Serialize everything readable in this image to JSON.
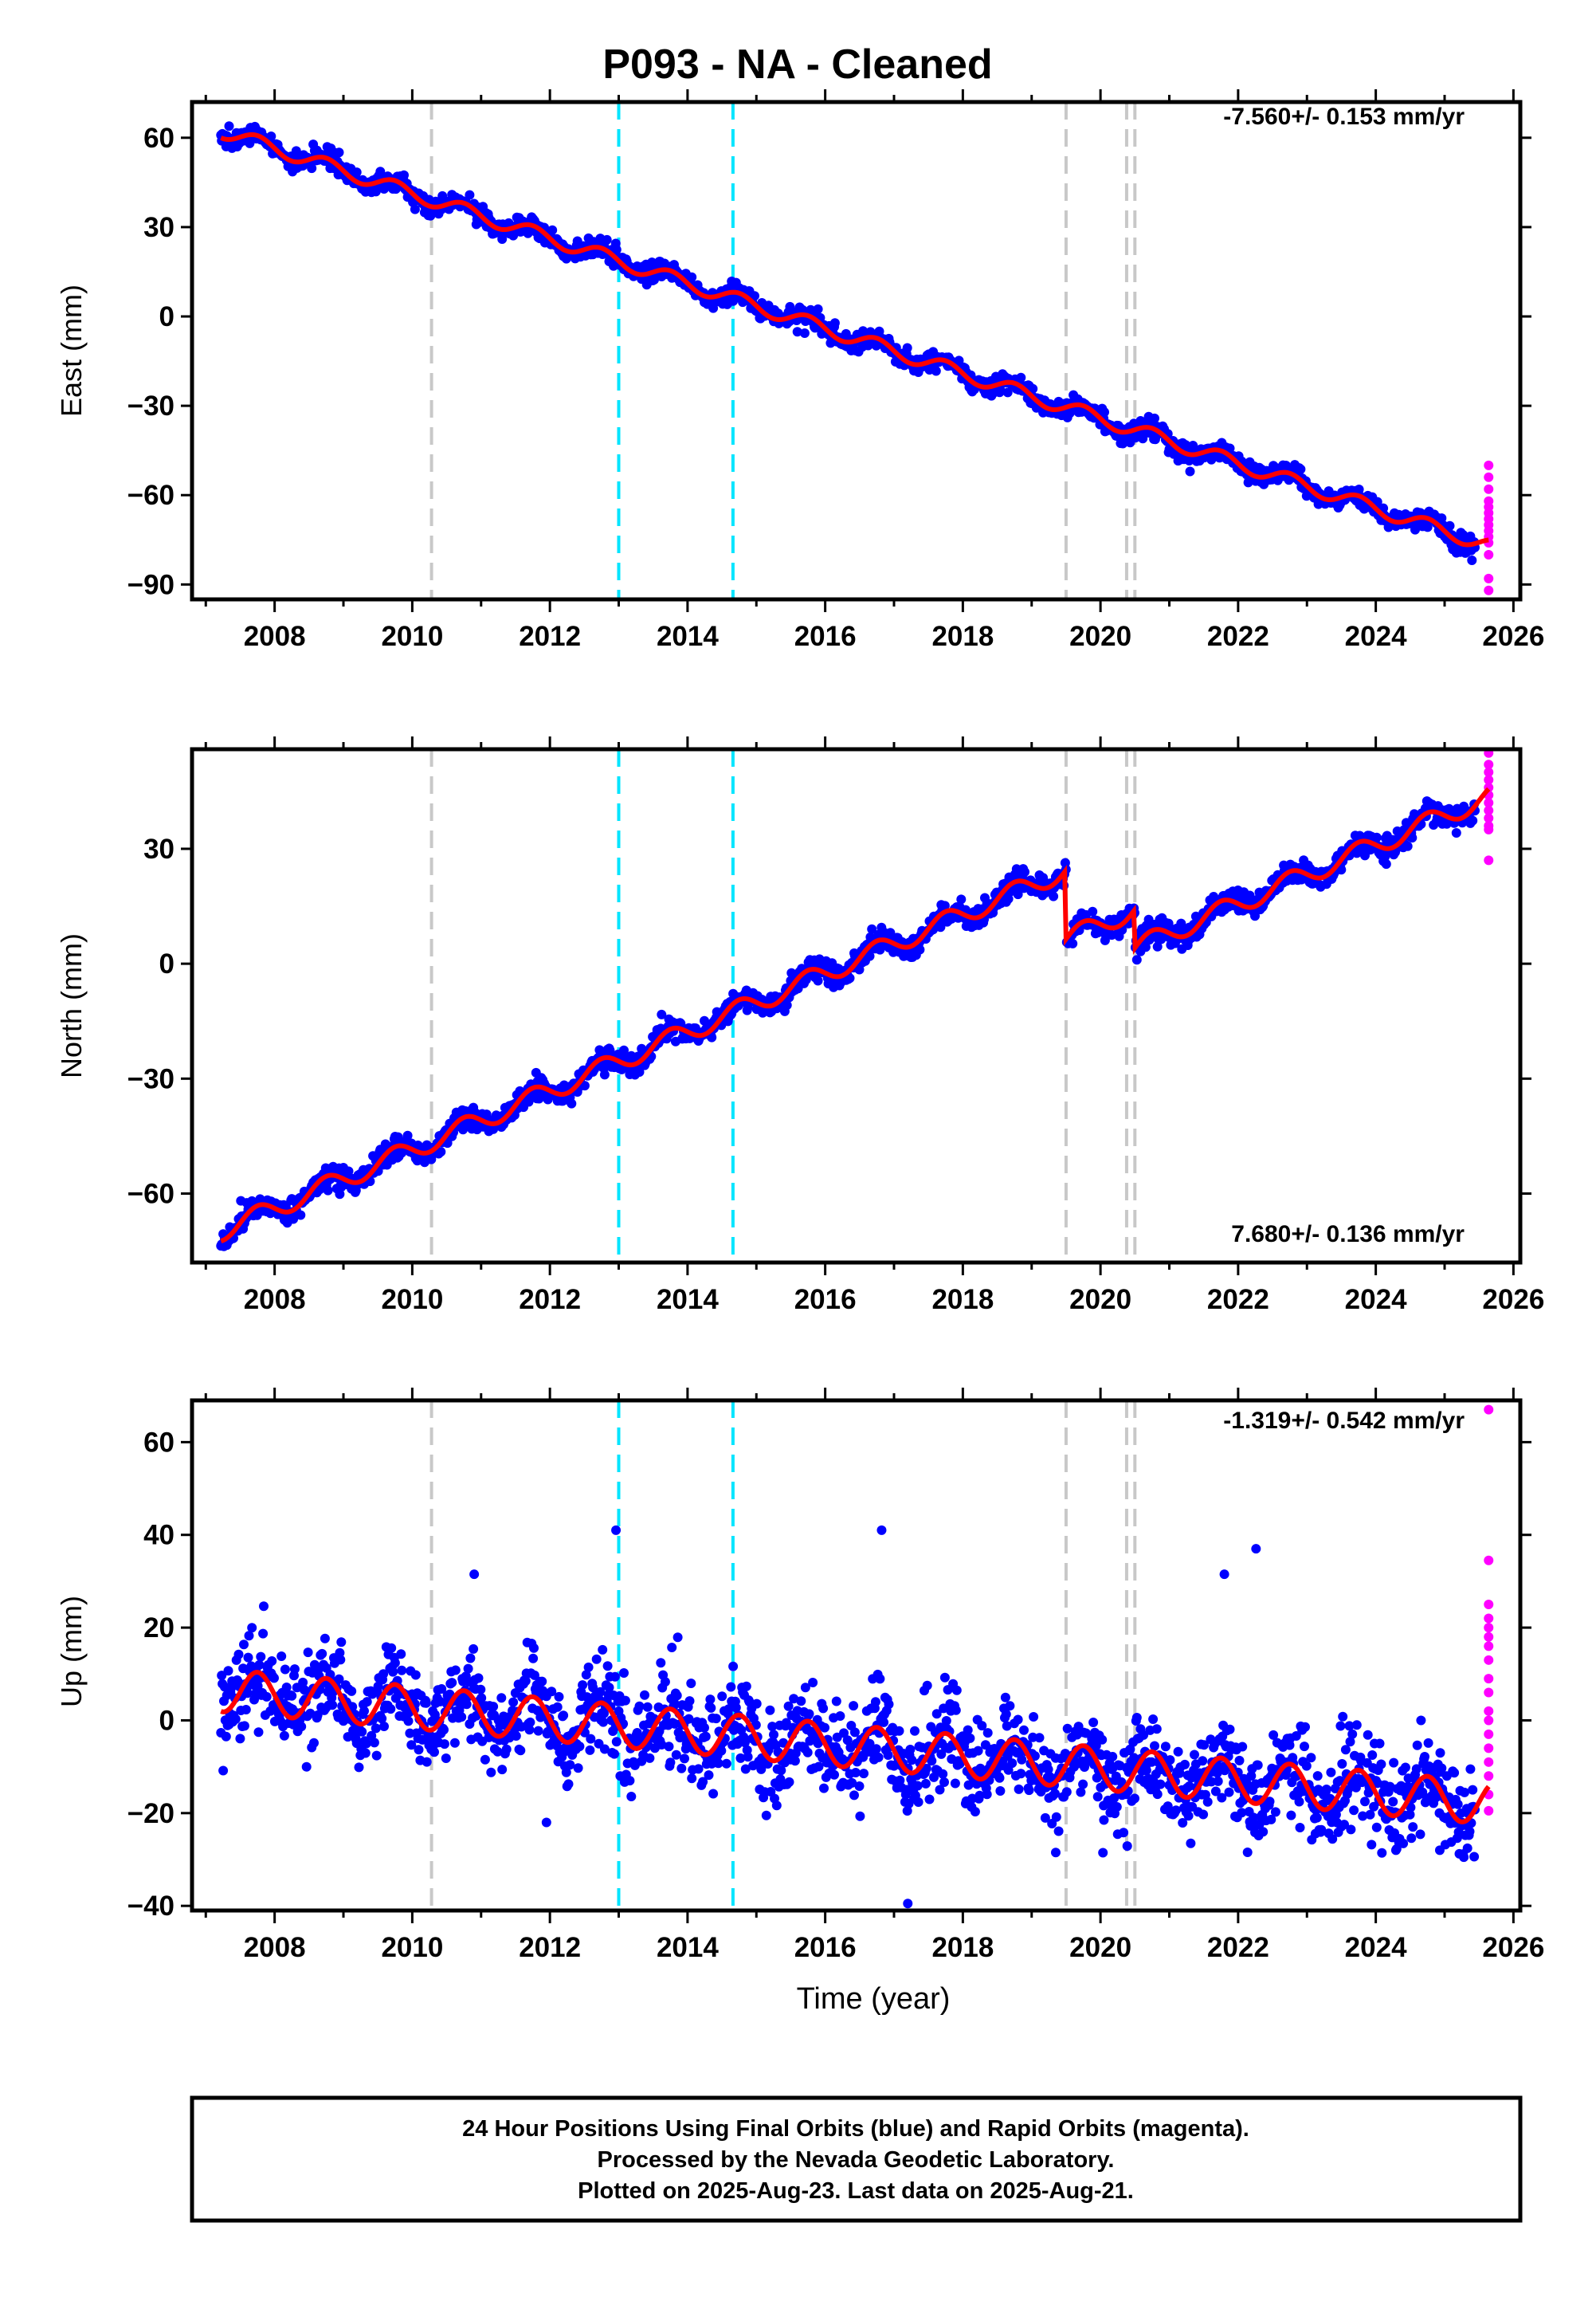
{
  "colors": {
    "final_orbits": "#0000ff",
    "rapid_orbits": "#ff00ff",
    "model": "#ff0000",
    "gray_event": "#c8c8c8",
    "cyan_event": "#00e5ff"
  },
  "chart_data": {
    "title": "P093  - NA - Cleaned",
    "xlabel": "Time (year)",
    "x_ticks": [
      "2008",
      "2010",
      "2012",
      "2014",
      "2016",
      "2018",
      "2020",
      "2022",
      "2024",
      "2026"
    ],
    "x_range": [
      2006.8,
      2026.1
    ],
    "data_span": [
      2007.22,
      2025.64
    ],
    "last_data": 2025.64,
    "event_lines": [
      {
        "x": 2010.28,
        "color": "gray"
      },
      {
        "x": 2013.0,
        "color": "cyan"
      },
      {
        "x": 2014.66,
        "color": "cyan"
      },
      {
        "x": 2019.5,
        "color": "gray"
      },
      {
        "x": 2020.38,
        "color": "gray"
      },
      {
        "x": 2020.5,
        "color": "gray"
      }
    ],
    "panels": [
      {
        "type": "scatter",
        "component": "east",
        "ylabel": "East (mm)",
        "ylim": [
          -95,
          72
        ],
        "yticks": [
          60,
          30,
          0,
          -30,
          -60,
          -90
        ],
        "tick_labels": [
          "60",
          "30",
          "0",
          "−30",
          "−60",
          "−90"
        ],
        "rate_label": "-7.560+/- 0.153 mm/yr",
        "rate_position": "top-right",
        "velocity_mm_per_yr": -7.56,
        "series": [
          {
            "name": "Final Orbits",
            "color": "blue"
          },
          {
            "name": "Rapid Orbits",
            "color": "magenta"
          },
          {
            "name": "Model",
            "color": "red"
          }
        ],
        "model_anchor": {
          "year": 2007.2,
          "value": 62.5
        },
        "seasonal_amplitude": 2.4,
        "offsets": [
          {
            "x": 2019.5,
            "value": 0
          },
          {
            "x": 2020.5,
            "value": 0
          }
        ],
        "scatter_sd": 1.6,
        "rapid_points": [
          -50,
          -54,
          -58,
          -62,
          -64,
          -66,
          -68,
          -70,
          -72,
          -74,
          -76,
          -80,
          -88,
          -92
        ]
      },
      {
        "type": "scatter",
        "component": "north",
        "ylabel": "North (mm)",
        "ylim": [
          -78,
          56
        ],
        "yticks": [
          30,
          0,
          -30,
          -60
        ],
        "tick_labels": [
          "30",
          "0",
          "−30",
          "−60"
        ],
        "rate_label": "7.680+/- 0.136 mm/yr",
        "rate_position": "bottom-right",
        "velocity_mm_per_yr": 7.68,
        "series": [
          {
            "name": "Final Orbits",
            "color": "blue"
          },
          {
            "name": "Rapid Orbits",
            "color": "magenta"
          },
          {
            "name": "Model",
            "color": "red"
          }
        ],
        "model_anchor": {
          "year": 2007.2,
          "value": -70
        },
        "seasonal_amplitude": 2.6,
        "offsets": [
          {
            "x": 2019.5,
            "value": -18
          },
          {
            "x": 2020.5,
            "value": -10
          }
        ],
        "scatter_sd": 1.5,
        "rapid_points": [
          55,
          52,
          50,
          48,
          46,
          44,
          42,
          40,
          38,
          36,
          35,
          27
        ]
      },
      {
        "type": "scatter",
        "component": "up",
        "ylabel": "Up (mm)",
        "ylim": [
          -41,
          69
        ],
        "yticks": [
          60,
          40,
          20,
          0,
          -20,
          -40
        ],
        "tick_labels": [
          "60",
          "40",
          "20",
          "0",
          "−20",
          "−40"
        ],
        "rate_label": "-1.319+/- 0.542 mm/yr",
        "rate_position": "top-right",
        "velocity_mm_per_yr": -1.319,
        "series": [
          {
            "name": "Final Orbits",
            "color": "blue"
          },
          {
            "name": "Rapid Orbits",
            "color": "magenta"
          },
          {
            "name": "Model",
            "color": "red"
          }
        ],
        "model_anchor": {
          "year": 2007.2,
          "value": 6.5
        },
        "seasonal_amplitude": 4.6,
        "offsets": [],
        "scatter_sd": 5.0,
        "rapid_points": [
          67,
          34.5,
          25,
          22,
          20,
          18,
          16,
          13,
          9,
          6,
          2,
          0,
          -3,
          -6,
          -9,
          -12,
          -16,
          -19.5
        ],
        "outliers": [
          [
            2012.96,
            41
          ],
          [
            2016.82,
            41
          ],
          [
            2022.26,
            37
          ],
          [
            2010.9,
            31.5
          ],
          [
            2021.8,
            31.5
          ],
          [
            2017.2,
            -39.5
          ],
          [
            2019.35,
            -28.5
          ],
          [
            2024.93,
            -28
          ],
          [
            2011.95,
            -22
          ],
          [
            2020.05,
            -21.5
          ]
        ]
      }
    ]
  },
  "footer": {
    "line1": "24 Hour Positions Using Final Orbits (blue) and Rapid Orbits (magenta).",
    "line2": "Processed by the Nevada Geodetic Laboratory.",
    "line3": "Plotted on 2025-Aug-23. Last data on 2025-Aug-21."
  }
}
